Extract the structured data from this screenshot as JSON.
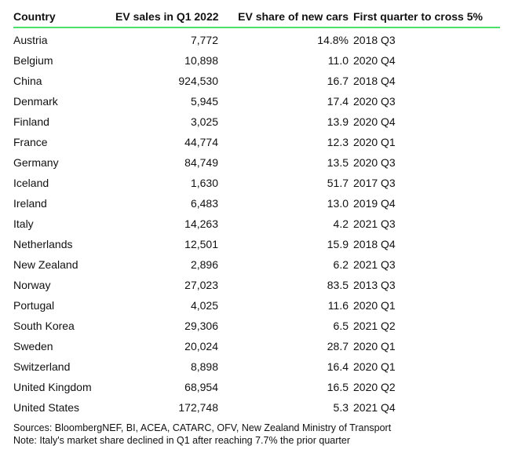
{
  "chart_data": {
    "type": "table",
    "columns": [
      "Country",
      "EV sales in Q1 2022",
      "EV share of new cars",
      "First quarter to cross 5%"
    ],
    "rows": [
      {
        "country": "Austria",
        "sales": "7,772",
        "share": "14.8%",
        "quarter": "2018 Q3"
      },
      {
        "country": "Belgium",
        "sales": "10,898",
        "share": "11.0",
        "quarter": "2020 Q4"
      },
      {
        "country": "China",
        "sales": "924,530",
        "share": "16.7",
        "quarter": "2018 Q4"
      },
      {
        "country": "Denmark",
        "sales": "5,945",
        "share": "17.4",
        "quarter": "2020 Q3"
      },
      {
        "country": "Finland",
        "sales": "3,025",
        "share": "13.9",
        "quarter": "2020 Q4"
      },
      {
        "country": "France",
        "sales": "44,774",
        "share": "12.3",
        "quarter": "2020 Q1"
      },
      {
        "country": "Germany",
        "sales": "84,749",
        "share": "13.5",
        "quarter": "2020 Q3"
      },
      {
        "country": "Iceland",
        "sales": "1,630",
        "share": "51.7",
        "quarter": "2017 Q3"
      },
      {
        "country": "Ireland",
        "sales": "6,483",
        "share": "13.0",
        "quarter": "2019 Q4"
      },
      {
        "country": "Italy",
        "sales": "14,263",
        "share": "4.2",
        "quarter": "2021 Q3"
      },
      {
        "country": "Netherlands",
        "sales": "12,501",
        "share": "15.9",
        "quarter": "2018 Q4"
      },
      {
        "country": "New Zealand",
        "sales": "2,896",
        "share": "6.2",
        "quarter": "2021 Q3"
      },
      {
        "country": "Norway",
        "sales": "27,023",
        "share": "83.5",
        "quarter": "2013 Q3"
      },
      {
        "country": "Portugal",
        "sales": "4,025",
        "share": "11.6",
        "quarter": "2020 Q1"
      },
      {
        "country": "South Korea",
        "sales": "29,306",
        "share": "6.5",
        "quarter": "2021 Q2"
      },
      {
        "country": "Sweden",
        "sales": "20,024",
        "share": "28.7",
        "quarter": "2020 Q1"
      },
      {
        "country": "Switzerland",
        "sales": "8,898",
        "share": "16.4",
        "quarter": "2020 Q1"
      },
      {
        "country": "United Kingdom",
        "sales": "68,954",
        "share": "16.5",
        "quarter": "2020 Q2"
      },
      {
        "country": "United States",
        "sales": "172,748",
        "share": "5.3",
        "quarter": "2021 Q4"
      }
    ]
  },
  "footer": {
    "sources": "Sources: BloombergNEF, BI, ACEA, CATARC, OFV, New Zealand Ministry of Transport",
    "note": "Note: Italy's market share declined in Q1 after reaching 7.7% the prior quarter"
  },
  "colors": {
    "header_rule": "#4be06a",
    "text": "#111111",
    "background": "#ffffff"
  }
}
